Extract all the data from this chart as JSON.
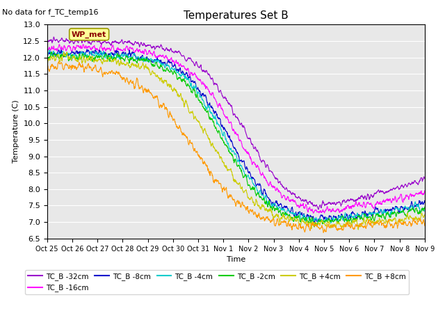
{
  "title": "Temperatures Set B",
  "xlabel": "Time",
  "ylabel": "Temperature (C)",
  "ylim": [
    6.5,
    13.0
  ],
  "yticks": [
    6.5,
    7.0,
    7.5,
    8.0,
    8.5,
    9.0,
    9.5,
    10.0,
    10.5,
    11.0,
    11.5,
    12.0,
    12.5,
    13.0
  ],
  "note": "No data for f_TC_temp16",
  "wp_met_label": "WP_met",
  "series": [
    {
      "label": "TC_B -32cm",
      "color": "#9900cc"
    },
    {
      "label": "TC_B -16cm",
      "color": "#ff00ff"
    },
    {
      "label": "TC_B -8cm",
      "color": "#0000cc"
    },
    {
      "label": "TC_B -4cm",
      "color": "#00cccc"
    },
    {
      "label": "TC_B -2cm",
      "color": "#00cc00"
    },
    {
      "label": "TC_B +4cm",
      "color": "#cccc00"
    },
    {
      "label": "TC_B +8cm",
      "color": "#ff9900"
    }
  ],
  "xtick_labels": [
    "Oct 25",
    "Oct 26",
    "Oct 27",
    "Oct 28",
    "Oct 29",
    "Oct 30",
    "Oct 31",
    "Nov 1",
    "Nov 2",
    "Nov 3",
    "Nov 4",
    "Nov 5",
    "Nov 6",
    "Nov 7",
    "Nov 8",
    "Nov 9"
  ],
  "n_points": 1440,
  "bg_color": "#e8e8e8",
  "grid_color": "#ffffff"
}
